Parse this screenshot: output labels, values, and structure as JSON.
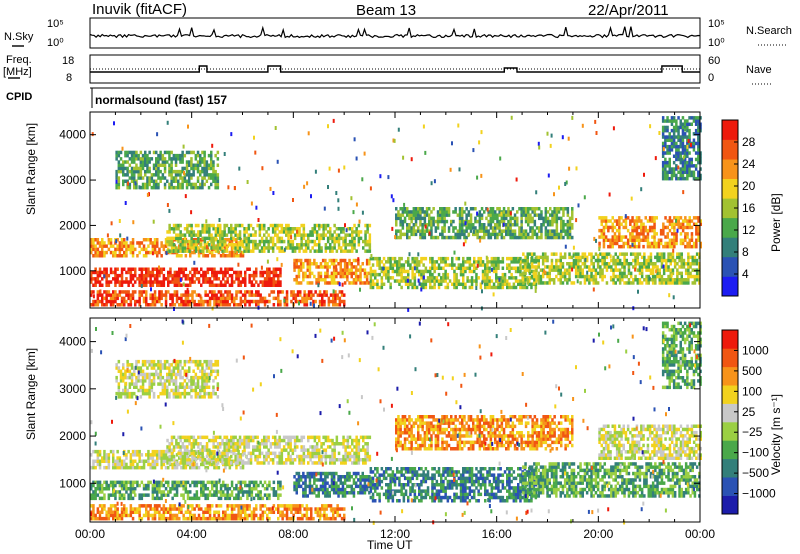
{
  "header": {
    "station": "Inuvik (fitACF)",
    "beam": "Beam 13",
    "date": "22/Apr/2011"
  },
  "panels": {
    "nsky_label": "N.Sky",
    "nsky_ticks": [
      "10^5",
      "10^0"
    ],
    "nsearch_label": "N.Search",
    "freq_label_1": "Freq.",
    "freq_label_2": "[MHz]",
    "freq_ticks": [
      "18",
      "8"
    ],
    "nave_label": "Nave",
    "nave_ticks": [
      "60",
      "0"
    ],
    "cpid_label": "CPID",
    "cpid_value": "normalsound (fast) 157"
  },
  "chart_data": [
    {
      "type": "heatmap",
      "name": "power",
      "ylabel": "Slant Range [km]",
      "xlabel": "",
      "xlim": [
        "00:00",
        "24:00"
      ],
      "ylim": [
        180,
        4500
      ],
      "y_ticks": [
        1000,
        2000,
        3000,
        4000
      ],
      "colorbar_label": "Power [dB]",
      "colorbar_ticks": [
        4,
        8,
        12,
        16,
        20,
        24,
        28
      ],
      "colorbar_colors": [
        "#1c1cf2",
        "#2a52b4",
        "#337f7a",
        "#4aa84a",
        "#a2c231",
        "#f2d21e",
        "#f7931a",
        "#f15612",
        "#ee1a0c"
      ],
      "bands": [
        {
          "t0": 0.0,
          "t1": 7.5,
          "r0": 650,
          "r1": 1050,
          "level": 8
        },
        {
          "t0": 0.0,
          "t1": 6.0,
          "r0": 1300,
          "r1": 1700,
          "level": 6
        },
        {
          "t0": 0.0,
          "t1": 10.0,
          "r0": 220,
          "r1": 520,
          "level": 7
        },
        {
          "t0": 3.0,
          "t1": 11.0,
          "r0": 1400,
          "r1": 2000,
          "level": 4
        },
        {
          "t0": 8.0,
          "t1": 11.0,
          "r0": 700,
          "r1": 1200,
          "level": 6
        },
        {
          "t0": 11.0,
          "t1": 17.5,
          "r0": 600,
          "r1": 1300,
          "level": 4
        },
        {
          "t0": 12.0,
          "t1": 19.0,
          "r0": 1700,
          "r1": 2400,
          "level": 3
        },
        {
          "t0": 17.0,
          "t1": 24.0,
          "r0": 700,
          "r1": 1400,
          "level": 4
        },
        {
          "t0": 20.0,
          "t1": 24.0,
          "r0": 1500,
          "r1": 2200,
          "level": 6
        },
        {
          "t0": 1.0,
          "t1": 5.0,
          "r0": 2800,
          "r1": 3600,
          "level": 3
        },
        {
          "t0": 22.5,
          "t1": 24.0,
          "r0": 3000,
          "r1": 4400,
          "level": 2
        }
      ]
    },
    {
      "type": "heatmap",
      "name": "velocity",
      "ylabel": "Slant Range [km]",
      "xlabel": "Time UT",
      "xlim": [
        "00:00",
        "24:00"
      ],
      "ylim": [
        180,
        4500
      ],
      "x_ticks": [
        "00:00",
        "04:00",
        "08:00",
        "12:00",
        "16:00",
        "20:00",
        "00:00"
      ],
      "y_ticks": [
        1000,
        2000,
        3000,
        4000
      ],
      "colorbar_label": "Velocity [m s⁻¹]",
      "colorbar_ticks": [
        "1000",
        "500",
        "100",
        "25",
        "−25",
        "−100",
        "−500",
        "−1000"
      ],
      "colorbar_colors": [
        "#1c1caa",
        "#2a52b4",
        "#337f7a",
        "#4aa84a",
        "#9bcf43",
        "#c8c8c8",
        "#f2d21e",
        "#f7931a",
        "#f15612",
        "#ee1a0c"
      ],
      "bands": [
        {
          "t0": 0.0,
          "t1": 7.5,
          "r0": 650,
          "r1": 1050,
          "level": 3
        },
        {
          "t0": 0.0,
          "t1": 6.0,
          "r0": 1300,
          "r1": 1700,
          "level": 5
        },
        {
          "t0": 0.0,
          "t1": 10.0,
          "r0": 220,
          "r1": 520,
          "level": 7
        },
        {
          "t0": 3.0,
          "t1": 11.0,
          "r0": 1400,
          "r1": 2000,
          "level": 5
        },
        {
          "t0": 8.0,
          "t1": 11.0,
          "r0": 700,
          "r1": 1200,
          "level": 2
        },
        {
          "t0": 11.0,
          "t1": 17.5,
          "r0": 600,
          "r1": 1300,
          "level": 2
        },
        {
          "t0": 12.0,
          "t1": 19.0,
          "r0": 1700,
          "r1": 2400,
          "level": 7
        },
        {
          "t0": 17.0,
          "t1": 24.0,
          "r0": 700,
          "r1": 1400,
          "level": 3
        },
        {
          "t0": 20.0,
          "t1": 24.0,
          "r0": 1500,
          "r1": 2200,
          "level": 5
        },
        {
          "t0": 1.0,
          "t1": 5.0,
          "r0": 2800,
          "r1": 3600,
          "level": 5
        },
        {
          "t0": 22.5,
          "t1": 24.0,
          "r0": 3000,
          "r1": 4400,
          "level": 3
        }
      ]
    }
  ]
}
